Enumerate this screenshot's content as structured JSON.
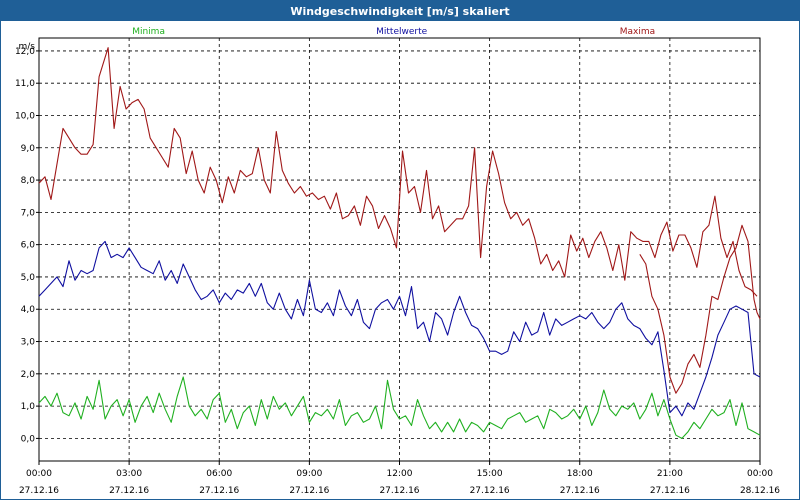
{
  "window": {
    "title": "Windgeschwindigkeit [m/s] skaliert"
  },
  "chart_data": {
    "type": "line",
    "title": "Windgeschwindigkeit [m/s] skaliert",
    "ylabel": "m/s",
    "xlabel": "",
    "ylim": [
      -0.7,
      12.4
    ],
    "xlim": [
      0,
      24
    ],
    "grid": true,
    "legend_position": "top",
    "y_ticks": [
      "0,0",
      "1,0",
      "2,0",
      "3,0",
      "4,0",
      "5,0",
      "6,0",
      "7,0",
      "8,0",
      "9,0",
      "10,0",
      "11,0",
      "12,0"
    ],
    "y_tick_values": [
      0,
      1,
      2,
      3,
      4,
      5,
      6,
      7,
      8,
      9,
      10,
      11,
      12
    ],
    "x_ticks": [
      {
        "time": "00:00",
        "date": "27.12.16"
      },
      {
        "time": "03:00",
        "date": "27.12.16"
      },
      {
        "time": "06:00",
        "date": "27.12.16"
      },
      {
        "time": "09:00",
        "date": "27.12.16"
      },
      {
        "time": "12:00",
        "date": "27.12.16"
      },
      {
        "time": "15:00",
        "date": "27.12.16"
      },
      {
        "time": "18:00",
        "date": "27.12.16"
      },
      {
        "time": "21:00",
        "date": "27.12.16"
      },
      {
        "time": "00:00",
        "date": "28.12.16"
      }
    ],
    "x_tick_hours": [
      0,
      3,
      6,
      9,
      12,
      15,
      18,
      21,
      24
    ],
    "series": [
      {
        "name": "Maxima",
        "color": "#a01818",
        "x": [
          0.0,
          0.2,
          0.4,
          0.6,
          0.8,
          1.0,
          1.2,
          1.4,
          1.6,
          1.8,
          2.0,
          2.1,
          2.3,
          2.5,
          2.7,
          2.9,
          3.1,
          3.3,
          3.5,
          3.7,
          3.9,
          4.1,
          4.3,
          4.5,
          4.7,
          4.9,
          5.1,
          5.3,
          5.5,
          5.7,
          5.9,
          6.1,
          6.3,
          6.5,
          6.7,
          6.9,
          7.1,
          7.3,
          7.5,
          7.7,
          7.9,
          8.1,
          8.3,
          8.5,
          8.7,
          8.9,
          9.1,
          9.3,
          9.5,
          9.7,
          9.9,
          10.1,
          10.3,
          10.5,
          10.7,
          10.9,
          11.1,
          11.3,
          11.5,
          11.7,
          11.9,
          12.1,
          12.3,
          12.5,
          12.7,
          12.9,
          13.1,
          13.3,
          13.5,
          13.7,
          13.9,
          14.1,
          14.3,
          14.5,
          14.7,
          14.9,
          15.1,
          15.3,
          15.5,
          15.7,
          15.9,
          16.1,
          16.3,
          16.5,
          16.7,
          16.9,
          17.1,
          17.3,
          17.5,
          17.7,
          17.9,
          18.1,
          18.3,
          18.5,
          18.7,
          18.9,
          19.1,
          19.3,
          19.5,
          19.7,
          19.9,
          20.1,
          20.3,
          20.5,
          20.7,
          20.9,
          21.1,
          21.3,
          21.5,
          21.7,
          21.9,
          22.1,
          22.3,
          22.5,
          22.7,
          22.9,
          23.1,
          23.3,
          23.5,
          23.7,
          23.9
        ],
        "y": [
          7.9,
          8.1,
          7.4,
          8.5,
          9.6,
          9.3,
          9.0,
          8.8,
          8.8,
          9.1,
          11.2,
          11.5,
          12.1,
          9.6,
          10.9,
          10.2,
          10.4,
          10.5,
          10.2,
          9.3,
          9.0,
          8.7,
          8.4,
          9.6,
          9.3,
          8.2,
          8.9,
          8.0,
          7.6,
          8.4,
          8.0,
          7.3,
          8.1,
          7.6,
          8.3,
          8.1,
          8.2,
          9.0,
          8.0,
          7.6,
          9.5,
          8.3,
          7.9,
          7.6,
          7.8,
          7.5,
          7.6,
          7.4,
          7.5,
          7.1,
          7.6,
          6.8,
          6.9,
          7.2,
          6.6,
          7.5,
          7.2,
          6.5,
          6.9,
          6.5,
          5.9,
          8.9,
          7.6,
          7.8,
          7.0,
          8.3,
          6.8,
          7.2,
          6.4,
          6.6,
          6.8,
          6.8,
          7.2,
          9.0,
          5.6,
          7.8,
          8.9,
          8.2,
          7.3,
          6.8,
          7.0,
          6.6,
          6.8,
          6.2,
          5.4,
          5.7,
          5.2,
          5.5,
          5.0,
          6.3,
          5.8,
          6.2,
          5.6,
          6.1,
          6.4,
          5.9,
          5.2,
          6.0,
          4.9,
          6.4,
          6.2,
          6.1,
          6.1,
          5.6,
          6.3,
          6.7,
          5.8,
          6.3,
          6.3,
          5.9,
          5.3,
          6.4,
          6.6,
          7.5,
          6.2,
          5.6,
          6.1,
          5.2,
          4.7,
          4.6,
          4.4
        ],
        "x2": [
          20.0,
          20.2,
          20.4,
          20.6,
          20.8,
          21.0,
          21.2,
          21.4,
          21.6,
          21.8,
          22.0,
          22.2,
          22.4,
          22.6,
          22.8,
          23.0,
          23.2,
          23.4,
          23.6,
          23.8,
          23.9,
          24.0
        ],
        "y2": [
          5.7,
          5.4,
          4.4,
          4.0,
          3.2,
          1.9,
          1.4,
          1.7,
          2.3,
          2.6,
          2.2,
          3.2,
          4.4,
          4.3,
          5.0,
          5.6,
          5.9,
          6.6,
          6.1,
          4.3,
          3.9,
          3.7
        ]
      },
      {
        "name": "Mittelwerte",
        "color": "#1010a0",
        "x": [
          0.0,
          0.2,
          0.4,
          0.6,
          0.8,
          1.0,
          1.2,
          1.4,
          1.6,
          1.8,
          2.0,
          2.2,
          2.4,
          2.6,
          2.8,
          3.0,
          3.2,
          3.4,
          3.6,
          3.8,
          4.0,
          4.2,
          4.4,
          4.6,
          4.8,
          5.0,
          5.2,
          5.4,
          5.6,
          5.8,
          6.0,
          6.2,
          6.4,
          6.6,
          6.8,
          7.0,
          7.2,
          7.4,
          7.6,
          7.8,
          8.0,
          8.2,
          8.4,
          8.6,
          8.8,
          9.0,
          9.2,
          9.4,
          9.6,
          9.8,
          10.0,
          10.2,
          10.4,
          10.6,
          10.8,
          11.0,
          11.2,
          11.4,
          11.6,
          11.8,
          12.0,
          12.2,
          12.4,
          12.6,
          12.8,
          13.0,
          13.2,
          13.4,
          13.6,
          13.8,
          14.0,
          14.2,
          14.4,
          14.6,
          14.8,
          15.0,
          15.2,
          15.4,
          15.6,
          15.8,
          16.0,
          16.2,
          16.4,
          16.6,
          16.8,
          17.0,
          17.2,
          17.4,
          17.6,
          17.8,
          18.0,
          18.2,
          18.4,
          18.6,
          18.8,
          19.0,
          19.2,
          19.4,
          19.6,
          19.8,
          20.0,
          20.2,
          20.4,
          20.6,
          20.8,
          21.0,
          21.2,
          21.4,
          21.6,
          21.8,
          22.0,
          22.2,
          22.4,
          22.6,
          22.8,
          23.0,
          23.2,
          23.4,
          23.6,
          23.8,
          24.0
        ],
        "y": [
          4.4,
          4.6,
          4.8,
          5.0,
          4.7,
          5.5,
          4.9,
          5.2,
          5.1,
          5.2,
          5.9,
          6.1,
          5.6,
          5.7,
          5.6,
          5.9,
          5.6,
          5.3,
          5.2,
          5.1,
          5.5,
          4.9,
          5.2,
          4.8,
          5.4,
          5.0,
          4.6,
          4.3,
          4.4,
          4.6,
          4.2,
          4.5,
          4.3,
          4.6,
          4.5,
          4.8,
          4.4,
          4.8,
          4.2,
          4.0,
          4.5,
          4.0,
          3.7,
          4.3,
          3.8,
          4.9,
          4.0,
          3.9,
          4.2,
          3.8,
          4.6,
          4.1,
          3.8,
          4.3,
          3.6,
          3.4,
          4.0,
          4.2,
          4.3,
          4.0,
          4.4,
          3.8,
          4.7,
          3.4,
          3.6,
          3.0,
          3.9,
          3.7,
          3.2,
          3.9,
          4.4,
          3.9,
          3.5,
          3.4,
          3.1,
          2.7,
          2.7,
          2.6,
          2.7,
          3.3,
          3.0,
          3.6,
          3.2,
          3.3,
          3.9,
          3.2,
          3.7,
          3.5,
          3.6,
          3.7,
          3.8,
          3.7,
          3.9,
          3.6,
          3.4,
          3.6,
          4.0,
          4.2,
          3.7,
          3.5,
          3.4,
          3.1,
          2.9,
          3.3,
          2.1,
          0.8,
          1.0,
          0.7,
          1.1,
          0.9,
          1.4,
          1.9,
          2.5,
          3.2,
          3.6,
          4.0,
          4.1,
          4.0,
          3.9,
          2.0,
          1.9
        ],
        "x2": [],
        "y2": []
      },
      {
        "name": "Minima",
        "color": "#20b020",
        "x": [
          0.0,
          0.2,
          0.4,
          0.6,
          0.8,
          1.0,
          1.2,
          1.4,
          1.6,
          1.8,
          2.0,
          2.2,
          2.4,
          2.6,
          2.8,
          3.0,
          3.2,
          3.4,
          3.6,
          3.8,
          4.0,
          4.2,
          4.4,
          4.6,
          4.8,
          5.0,
          5.2,
          5.4,
          5.6,
          5.8,
          6.0,
          6.2,
          6.4,
          6.6,
          6.8,
          7.0,
          7.2,
          7.4,
          7.6,
          7.8,
          8.0,
          8.2,
          8.4,
          8.6,
          8.8,
          9.0,
          9.2,
          9.4,
          9.6,
          9.8,
          10.0,
          10.2,
          10.4,
          10.6,
          10.8,
          11.0,
          11.2,
          11.4,
          11.6,
          11.8,
          12.0,
          12.2,
          12.4,
          12.6,
          12.8,
          13.0,
          13.2,
          13.4,
          13.6,
          13.8,
          14.0,
          14.2,
          14.4,
          14.6,
          14.8,
          15.0,
          15.2,
          15.4,
          15.6,
          15.8,
          16.0,
          16.2,
          16.4,
          16.6,
          16.8,
          17.0,
          17.2,
          17.4,
          17.6,
          17.8,
          18.0,
          18.2,
          18.4,
          18.6,
          18.8,
          19.0,
          19.2,
          19.4,
          19.6,
          19.8,
          20.0,
          20.2,
          20.4,
          20.6,
          20.8,
          21.0,
          21.2,
          21.4,
          21.6,
          21.8,
          22.0,
          22.2,
          22.4,
          22.6,
          22.8,
          23.0,
          23.2,
          23.4,
          23.6,
          23.8,
          24.0
        ],
        "y": [
          1.1,
          1.3,
          1.0,
          1.4,
          0.8,
          0.7,
          1.1,
          0.6,
          1.3,
          0.9,
          1.8,
          0.6,
          1.0,
          1.2,
          0.7,
          1.2,
          0.5,
          1.0,
          1.3,
          0.8,
          1.4,
          0.9,
          0.5,
          1.3,
          1.9,
          1.0,
          0.7,
          0.9,
          0.6,
          1.2,
          1.4,
          0.5,
          0.9,
          0.3,
          0.8,
          1.0,
          0.4,
          1.2,
          0.6,
          1.3,
          0.9,
          1.1,
          0.7,
          1.0,
          1.3,
          0.5,
          0.8,
          0.7,
          0.9,
          0.6,
          1.2,
          0.4,
          0.7,
          0.8,
          0.5,
          0.6,
          1.0,
          0.3,
          1.8,
          0.9,
          0.6,
          0.7,
          0.4,
          1.2,
          0.7,
          0.3,
          0.5,
          0.2,
          0.5,
          0.2,
          0.6,
          0.2,
          0.5,
          0.4,
          0.2,
          0.5,
          0.4,
          0.3,
          0.6,
          0.7,
          0.8,
          0.5,
          0.6,
          0.7,
          0.3,
          0.9,
          0.8,
          0.6,
          0.7,
          0.9,
          0.6,
          1.0,
          0.4,
          0.8,
          1.5,
          0.9,
          0.7,
          1.0,
          0.9,
          1.1,
          0.6,
          0.9,
          1.4,
          0.7,
          1.2,
          0.6,
          0.1,
          0.0,
          0.2,
          0.5,
          0.3,
          0.6,
          0.9,
          0.7,
          0.8,
          1.2,
          0.4,
          1.1,
          0.3,
          0.2,
          0.1
        ],
        "x2": [],
        "y2": []
      }
    ]
  }
}
